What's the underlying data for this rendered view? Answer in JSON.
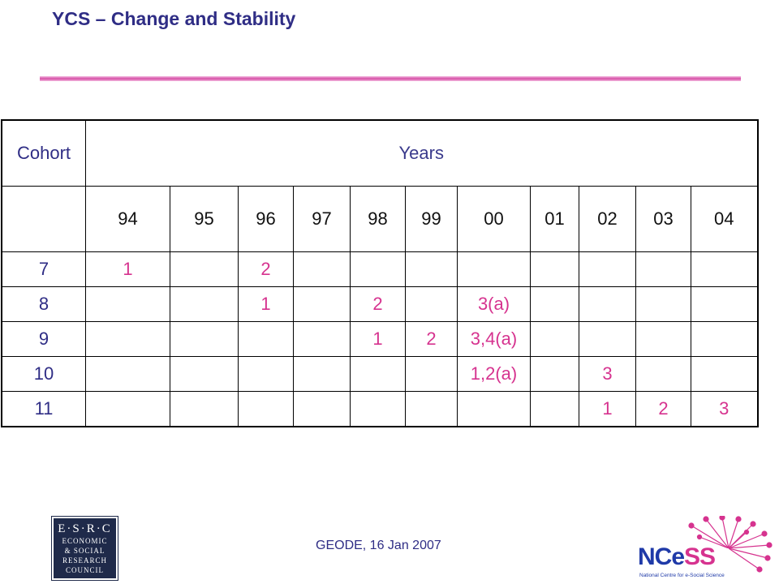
{
  "slide": {
    "title": "YCS – Change and Stability",
    "footer": "GEODE, 16 Jan 2007"
  },
  "table": {
    "cohort_header": "Cohort",
    "years_header": "Years",
    "years": [
      "94",
      "95",
      "96",
      "97",
      "98",
      "99",
      "00",
      "01",
      "02",
      "03",
      "04"
    ],
    "rows": [
      {
        "cohort": "7",
        "cells": [
          "1",
          "",
          "2",
          "",
          "",
          "",
          "",
          "",
          "",
          "",
          ""
        ]
      },
      {
        "cohort": "8",
        "cells": [
          "",
          "",
          "1",
          "",
          "2",
          "",
          "3(a)",
          "",
          "",
          "",
          ""
        ]
      },
      {
        "cohort": "9",
        "cells": [
          "",
          "",
          "",
          "",
          "1",
          "2",
          "3,4(a)",
          "",
          "",
          "",
          ""
        ]
      },
      {
        "cohort": "10",
        "cells": [
          "",
          "",
          "",
          "",
          "",
          "",
          "1,2(a)",
          "",
          "3",
          "",
          ""
        ]
      },
      {
        "cohort": "11",
        "cells": [
          "",
          "",
          "",
          "",
          "",
          "",
          "",
          "",
          "1",
          "2",
          "3"
        ]
      }
    ]
  },
  "logos": {
    "esrc_lines": [
      "E·S·R·C",
      "ECONOMIC",
      "& SOCIAL",
      "RESEARCH",
      "COUNCIL"
    ],
    "ncess_name_part1": "NCe",
    "ncess_name_part2": "SS",
    "ncess_tagline": "National Centre for e-Social Science"
  },
  "colors": {
    "title": "#2f2d85",
    "accent_rule": "#d64fa6",
    "data_text": "#d6338f"
  }
}
